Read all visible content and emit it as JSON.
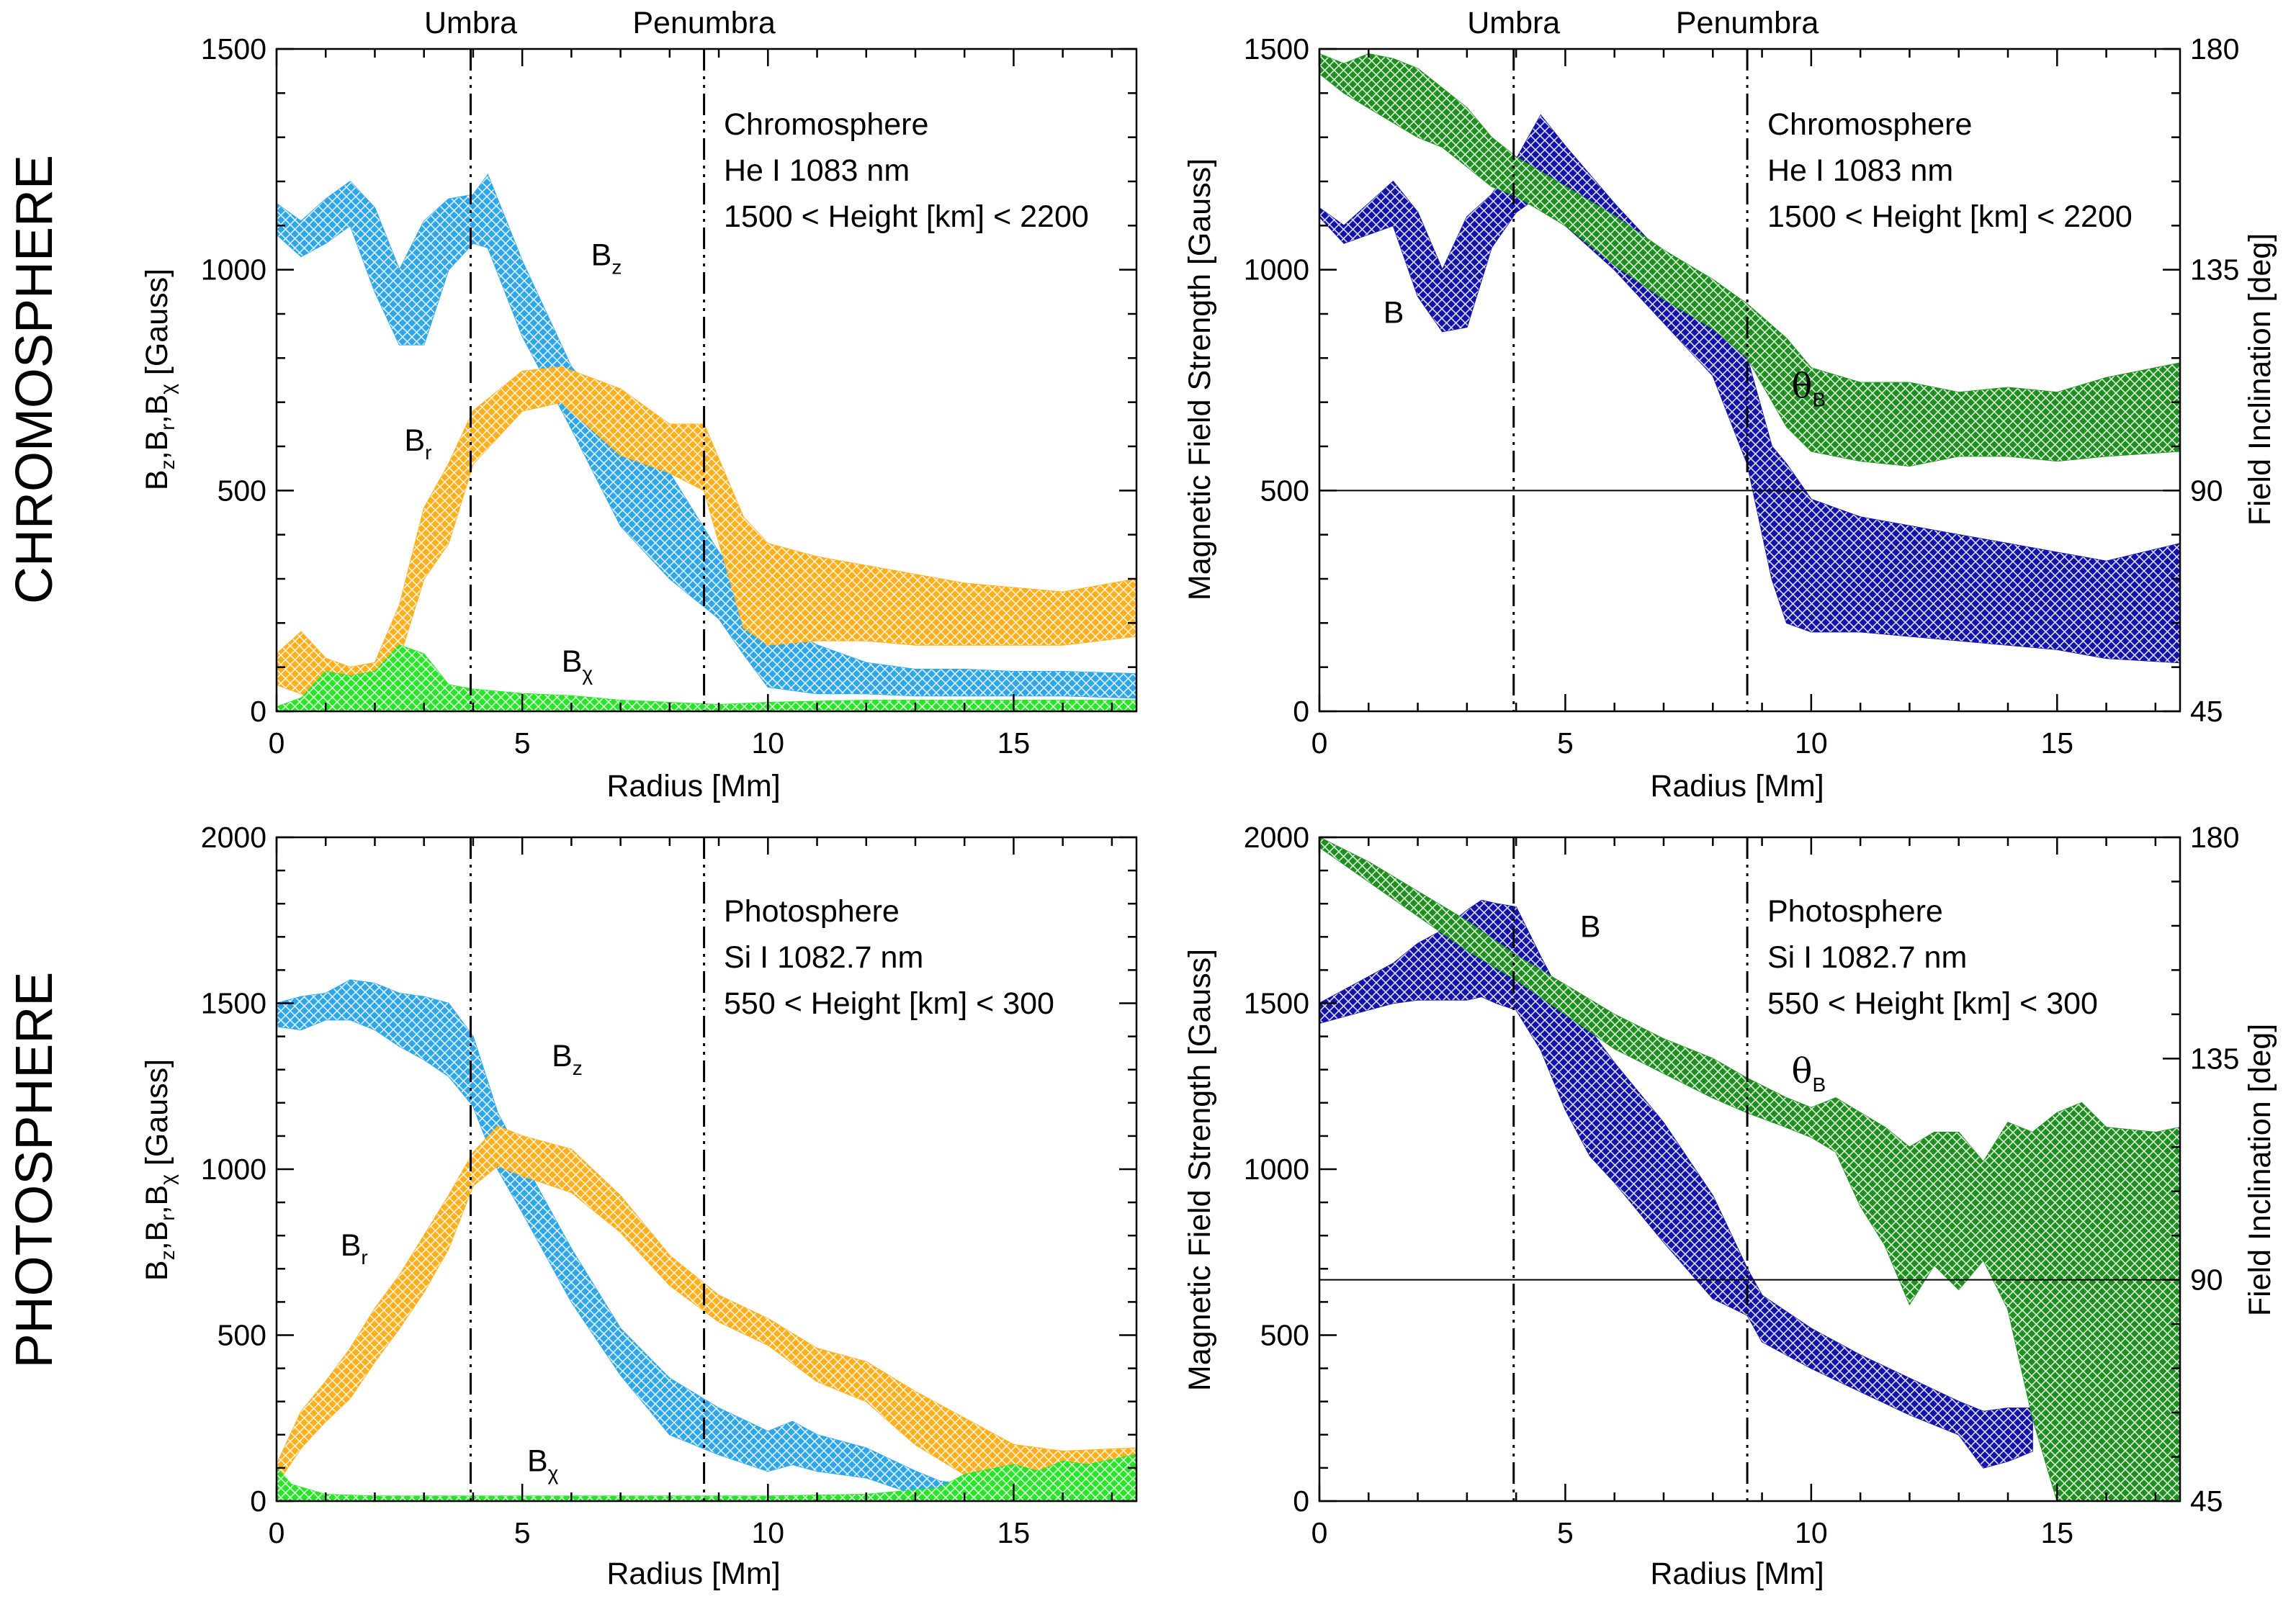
{
  "row_labels": {
    "top": "CHROMOSPHERE",
    "bottom": "PHOTOSPHERE"
  },
  "colors": {
    "Bz": "#2ea6e8",
    "Br": "#ffaf1b",
    "Bchi": "#27e527",
    "B": "#1313a8",
    "thetaB": "#1e8f1e"
  },
  "chart_data": [
    {
      "id": "chromo_components",
      "type": "area",
      "xlabel": "Radius [Mm]",
      "ylabel": "B_z,B_r,B_χ [Gauss]",
      "xlim": [
        0,
        17.5
      ],
      "ylim": [
        0,
        1500
      ],
      "xticks": [
        0,
        5,
        10,
        15
      ],
      "yticks": [
        0,
        500,
        1000,
        1500
      ],
      "vlines": [
        {
          "x": 3.95,
          "label": "Umbra"
        },
        {
          "x": 8.7,
          "label": "Penumbra"
        }
      ],
      "annotation": [
        "Chromosphere",
        "He I 1083 nm",
        "1500 < Height [km] < 2200"
      ],
      "series_labels": [
        {
          "base": "B",
          "sub": "z",
          "x": 6.4,
          "y": 1010
        },
        {
          "base": "B",
          "sub": "r",
          "x": 2.6,
          "y": 590
        },
        {
          "base": "B",
          "sub": "χ",
          "x": 5.8,
          "y": 90
        }
      ],
      "series": [
        {
          "name": "Bz",
          "color_key": "Bz",
          "x": [
            0,
            0.5,
            1.0,
            1.5,
            2.0,
            2.5,
            3.0,
            3.5,
            4.0,
            4.3,
            5.0,
            6.0,
            7.0,
            8.0,
            9.0,
            9.5,
            10.0,
            11.0,
            12.0,
            13.0,
            14.0,
            15.0,
            16.0,
            17.5
          ],
          "upper": [
            1150,
            1110,
            1160,
            1200,
            1140,
            1000,
            1110,
            1160,
            1170,
            1215,
            1020,
            780,
            650,
            540,
            360,
            290,
            210,
            150,
            110,
            95,
            95,
            90,
            90,
            85
          ],
          "lower": [
            1080,
            1030,
            1060,
            1100,
            950,
            830,
            830,
            1000,
            1060,
            1050,
            850,
            640,
            420,
            300,
            210,
            130,
            55,
            40,
            40,
            35,
            35,
            35,
            35,
            30
          ]
        },
        {
          "name": "Br",
          "color_key": "Br",
          "x": [
            0,
            0.5,
            1.0,
            1.5,
            2.0,
            2.5,
            3.0,
            3.5,
            4.0,
            5.0,
            5.8,
            7.0,
            8.0,
            8.7,
            9.5,
            10.0,
            11.0,
            12.0,
            13.0,
            14.0,
            15.0,
            16.0,
            17.5
          ],
          "upper": [
            130,
            180,
            120,
            100,
            110,
            240,
            460,
            560,
            680,
            770,
            780,
            730,
            650,
            650,
            440,
            380,
            350,
            330,
            310,
            290,
            280,
            270,
            300
          ],
          "lower": [
            60,
            40,
            20,
            20,
            30,
            120,
            300,
            380,
            560,
            680,
            700,
            580,
            540,
            500,
            190,
            150,
            160,
            160,
            150,
            150,
            150,
            150,
            170
          ]
        },
        {
          "name": "Bchi",
          "color_key": "Bchi",
          "x": [
            0,
            0.5,
            1.0,
            1.5,
            2.0,
            2.5,
            3.0,
            3.5,
            4.0,
            5.0,
            6.0,
            7.0,
            8.0,
            9.0,
            10.0,
            12.0,
            14.0,
            16.0,
            17.5
          ],
          "upper": [
            10,
            30,
            90,
            80,
            90,
            150,
            130,
            60,
            50,
            40,
            35,
            25,
            20,
            15,
            20,
            25,
            25,
            25,
            25
          ],
          "lower": [
            0,
            0,
            0,
            0,
            0,
            0,
            0,
            0,
            0,
            0,
            0,
            0,
            0,
            0,
            0,
            0,
            0,
            0,
            0
          ]
        }
      ]
    },
    {
      "id": "chromo_strength",
      "type": "area",
      "xlabel": "Radius [Mm]",
      "ylabel": "Magnetic Field Strength [Gauss]",
      "y2label": "Field Inclination [deg]",
      "xlim": [
        0,
        17.5
      ],
      "ylim": [
        0,
        1500
      ],
      "y2lim": [
        45,
        180
      ],
      "xticks": [
        0,
        5,
        10,
        15
      ],
      "yticks": [
        0,
        500,
        1000,
        1500
      ],
      "y2ticks": [
        45,
        90,
        135,
        180
      ],
      "hline_y2": 90,
      "vlines": [
        {
          "x": 3.95,
          "label": "Umbra"
        },
        {
          "x": 8.7,
          "label": "Penumbra"
        }
      ],
      "annotation": [
        "Chromosphere",
        "He I 1083 nm",
        "1500 < Height [km] < 2200"
      ],
      "series_labels": [
        {
          "base": "B",
          "sub": "",
          "x": 1.3,
          "y": 880
        },
        {
          "theta": "θ",
          "sub": "B",
          "x": 9.6,
          "y": 710,
          "axis": "y"
        }
      ],
      "series": [
        {
          "name": "B",
          "color_key": "B",
          "axis": "y",
          "x": [
            0,
            0.5,
            1.0,
            1.5,
            2.0,
            2.5,
            3.0,
            3.5,
            4.0,
            4.5,
            5.0,
            6.0,
            7.0,
            8.0,
            8.7,
            9.2,
            9.5,
            10.0,
            11.0,
            12.0,
            13.0,
            14.0,
            15.0,
            16.0,
            17.5
          ],
          "upper": [
            1140,
            1100,
            1150,
            1200,
            1130,
            1000,
            1120,
            1170,
            1250,
            1350,
            1280,
            1150,
            1030,
            920,
            800,
            600,
            560,
            480,
            440,
            420,
            400,
            380,
            360,
            340,
            380
          ],
          "lower": [
            1120,
            1060,
            1080,
            1100,
            940,
            860,
            870,
            1050,
            1130,
            1170,
            1100,
            1000,
            880,
            760,
            560,
            300,
            200,
            180,
            180,
            170,
            160,
            150,
            140,
            120,
            110
          ]
        },
        {
          "name": "thetaB",
          "color_key": "thetaB",
          "axis": "y2",
          "x": [
            0,
            0.5,
            1.0,
            1.5,
            2.0,
            2.5,
            3.0,
            3.5,
            4.0,
            5.0,
            6.0,
            7.0,
            8.0,
            8.7,
            9.5,
            10.0,
            11.0,
            12.0,
            13.0,
            14.0,
            15.0,
            16.0,
            17.5
          ],
          "upper": [
            179,
            177,
            179,
            178,
            176,
            172,
            168,
            162,
            158,
            152,
            146,
            139,
            133,
            128,
            121,
            115,
            112,
            112,
            110,
            111,
            110,
            113,
            116
          ],
          "lower": [
            175,
            171,
            168,
            165,
            162,
            160,
            156,
            152,
            150,
            144,
            136,
            129,
            123,
            117,
            103,
            98,
            96,
            95,
            97,
            97,
            96,
            97,
            98
          ]
        }
      ]
    },
    {
      "id": "photo_components",
      "type": "area",
      "xlabel": "Radius [Mm]",
      "ylabel": "B_z,B_r,B_χ [Gauss]",
      "xlim": [
        0,
        17.5
      ],
      "ylim": [
        0,
        2000
      ],
      "xticks": [
        0,
        5,
        10,
        15
      ],
      "yticks": [
        0,
        500,
        1000,
        1500,
        2000
      ],
      "vlines": [
        {
          "x": 3.95,
          "label": ""
        },
        {
          "x": 8.7,
          "label": ""
        }
      ],
      "annotation": [
        "Photosphere",
        "Si I 1082.7 nm",
        "550 < Height [km] < 300"
      ],
      "series_labels": [
        {
          "base": "B",
          "sub": "z",
          "x": 5.6,
          "y": 1310
        },
        {
          "base": "B",
          "sub": "r",
          "x": 1.3,
          "y": 740
        },
        {
          "base": "B",
          "sub": "χ",
          "x": 5.1,
          "y": 90
        }
      ],
      "series": [
        {
          "name": "Bz",
          "color_key": "Bz",
          "x": [
            0,
            0.5,
            1.0,
            1.5,
            2.0,
            2.5,
            3.0,
            3.5,
            4.0,
            4.5,
            5.0,
            6.0,
            7.0,
            8.0,
            9.0,
            10.0,
            10.5,
            11.0,
            12.0,
            13.0,
            13.5,
            14.0
          ],
          "upper": [
            1500,
            1520,
            1530,
            1570,
            1560,
            1530,
            1520,
            1500,
            1400,
            1170,
            1030,
            760,
            520,
            370,
            280,
            210,
            240,
            200,
            160,
            90,
            60,
            50
          ],
          "lower": [
            1430,
            1420,
            1450,
            1450,
            1420,
            1370,
            1330,
            1280,
            1190,
            1000,
            870,
            600,
            380,
            200,
            140,
            90,
            110,
            90,
            70,
            20,
            10,
            10
          ]
        },
        {
          "name": "Br",
          "color_key": "Br",
          "x": [
            0,
            0.5,
            1.0,
            1.5,
            2.0,
            2.5,
            3.0,
            3.5,
            4.0,
            4.5,
            5.0,
            6.0,
            7.0,
            8.0,
            9.0,
            10.0,
            11.0,
            12.0,
            13.0,
            14.0,
            15.0,
            16.0,
            17.5
          ],
          "upper": [
            110,
            270,
            360,
            460,
            580,
            680,
            800,
            920,
            1050,
            1130,
            1100,
            1060,
            920,
            740,
            620,
            550,
            460,
            420,
            330,
            250,
            170,
            150,
            160
          ],
          "lower": [
            50,
            160,
            240,
            310,
            420,
            520,
            630,
            760,
            950,
            1010,
            980,
            930,
            810,
            650,
            540,
            470,
            360,
            300,
            170,
            80,
            40,
            30,
            60
          ]
        },
        {
          "name": "Bchi",
          "color_key": "Bchi",
          "x": [
            0,
            0.3,
            1.0,
            2.0,
            4.0,
            6.0,
            8.0,
            10.0,
            12.0,
            13.5,
            14.0,
            15.0,
            15.5,
            16.0,
            16.5,
            17.5
          ],
          "upper": [
            100,
            50,
            20,
            15,
            15,
            15,
            15,
            15,
            20,
            40,
            80,
            110,
            90,
            120,
            110,
            140
          ],
          "lower": [
            0,
            0,
            0,
            0,
            0,
            0,
            0,
            0,
            0,
            0,
            0,
            0,
            0,
            0,
            0,
            0
          ]
        }
      ]
    },
    {
      "id": "photo_strength",
      "type": "area",
      "xlabel": "Radius [Mm]",
      "ylabel": "Magnetic Field Strength [Gauss]",
      "y2label": "Field Inclination [deg]",
      "xlim": [
        0,
        17.5
      ],
      "ylim": [
        0,
        2000
      ],
      "y2lim": [
        45,
        180
      ],
      "xticks": [
        0,
        5,
        10,
        15
      ],
      "yticks": [
        0,
        500,
        1000,
        1500,
        2000
      ],
      "y2ticks": [
        45,
        90,
        135,
        180
      ],
      "hline_y2": 90,
      "vlines": [
        {
          "x": 3.95,
          "label": ""
        },
        {
          "x": 8.7,
          "label": ""
        }
      ],
      "annotation": [
        "Photosphere",
        "Si I 1082.7 nm",
        "550 < Height [km] < 300"
      ],
      "series_labels": [
        {
          "base": "B",
          "sub": "",
          "x": 5.3,
          "y": 1700
        },
        {
          "theta": "θ",
          "sub": "B",
          "x": 9.6,
          "y": 1260,
          "axis": "y"
        }
      ],
      "series": [
        {
          "name": "B",
          "color_key": "B",
          "axis": "y",
          "x": [
            0,
            0.5,
            1.0,
            1.5,
            2.0,
            2.5,
            3.0,
            3.3,
            3.6,
            4.0,
            4.5,
            5.0,
            5.5,
            6.0,
            7.0,
            8.0,
            8.7,
            9.0,
            10.0,
            11.0,
            12.0,
            13.0,
            13.5,
            14.0,
            14.5
          ],
          "upper": [
            1500,
            1540,
            1580,
            1620,
            1680,
            1720,
            1780,
            1810,
            1800,
            1790,
            1640,
            1500,
            1420,
            1320,
            1140,
            920,
            700,
            620,
            520,
            440,
            370,
            300,
            270,
            280,
            280
          ],
          "lower": [
            1440,
            1460,
            1480,
            1500,
            1510,
            1510,
            1510,
            1520,
            1500,
            1480,
            1360,
            1180,
            1040,
            960,
            780,
            610,
            560,
            480,
            400,
            330,
            260,
            200,
            100,
            120,
            150
          ]
        },
        {
          "name": "thetaB",
          "color_key": "thetaB",
          "axis": "y2",
          "x": [
            0,
            1.0,
            2.0,
            3.0,
            4.0,
            5.0,
            6.0,
            7.0,
            8.0,
            8.7,
            9.5,
            10.0,
            10.5,
            11.0,
            11.5,
            12.0,
            12.5,
            13.0,
            13.5,
            14.0,
            14.5,
            15.0,
            15.5,
            16.0,
            17.0,
            17.5
          ],
          "upper": [
            180,
            175,
            169,
            163,
            156,
            150,
            144,
            139,
            135,
            131,
            127,
            125,
            127,
            124,
            121,
            117,
            120,
            120,
            114,
            122,
            120,
            124,
            126,
            121,
            120,
            121
          ],
          "lower": [
            178,
            171,
            164,
            157,
            151,
            144,
            137,
            132,
            127,
            124,
            121,
            119,
            116,
            105,
            97,
            85,
            93,
            88,
            94,
            84,
            62,
            45,
            45,
            45,
            45,
            45
          ]
        }
      ]
    }
  ]
}
